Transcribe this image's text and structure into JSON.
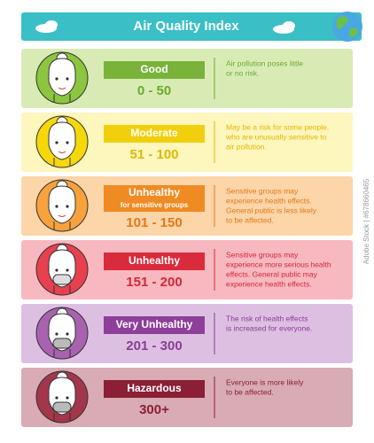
{
  "title": "Air Quality Index",
  "watermark": "Adobe Stock | #678660465",
  "levels": [
    {
      "label": "Good",
      "range": "0 - 50",
      "description": [
        "Air pollution poses little",
        "or no risk."
      ]
    },
    {
      "label": "Moderate",
      "range": "51 - 100",
      "description": [
        "May be a risk for some people,",
        "who are unusually sensitive to",
        "air pollution."
      ]
    },
    {
      "label": "Unhealthy",
      "sublabel": "for sensitive groups",
      "range": "101 - 150",
      "description": [
        "Sensitive groups may",
        "experience health effects.",
        "General public is less likely",
        "to be affected."
      ]
    },
    {
      "label": "Unhealthy",
      "range": "151 - 200",
      "description": [
        "Sensitive groups may",
        "experience more serious health",
        "effects. General public may",
        "experience health effects."
      ]
    },
    {
      "label": "Very Unhealthy",
      "range": "201 - 300",
      "description": [
        "The risk of health effects",
        "is increased for everyone."
      ]
    },
    {
      "label": "Hazardous",
      "range": "300+",
      "description": [
        "Everyone is more likely",
        "to be affected."
      ]
    }
  ]
}
